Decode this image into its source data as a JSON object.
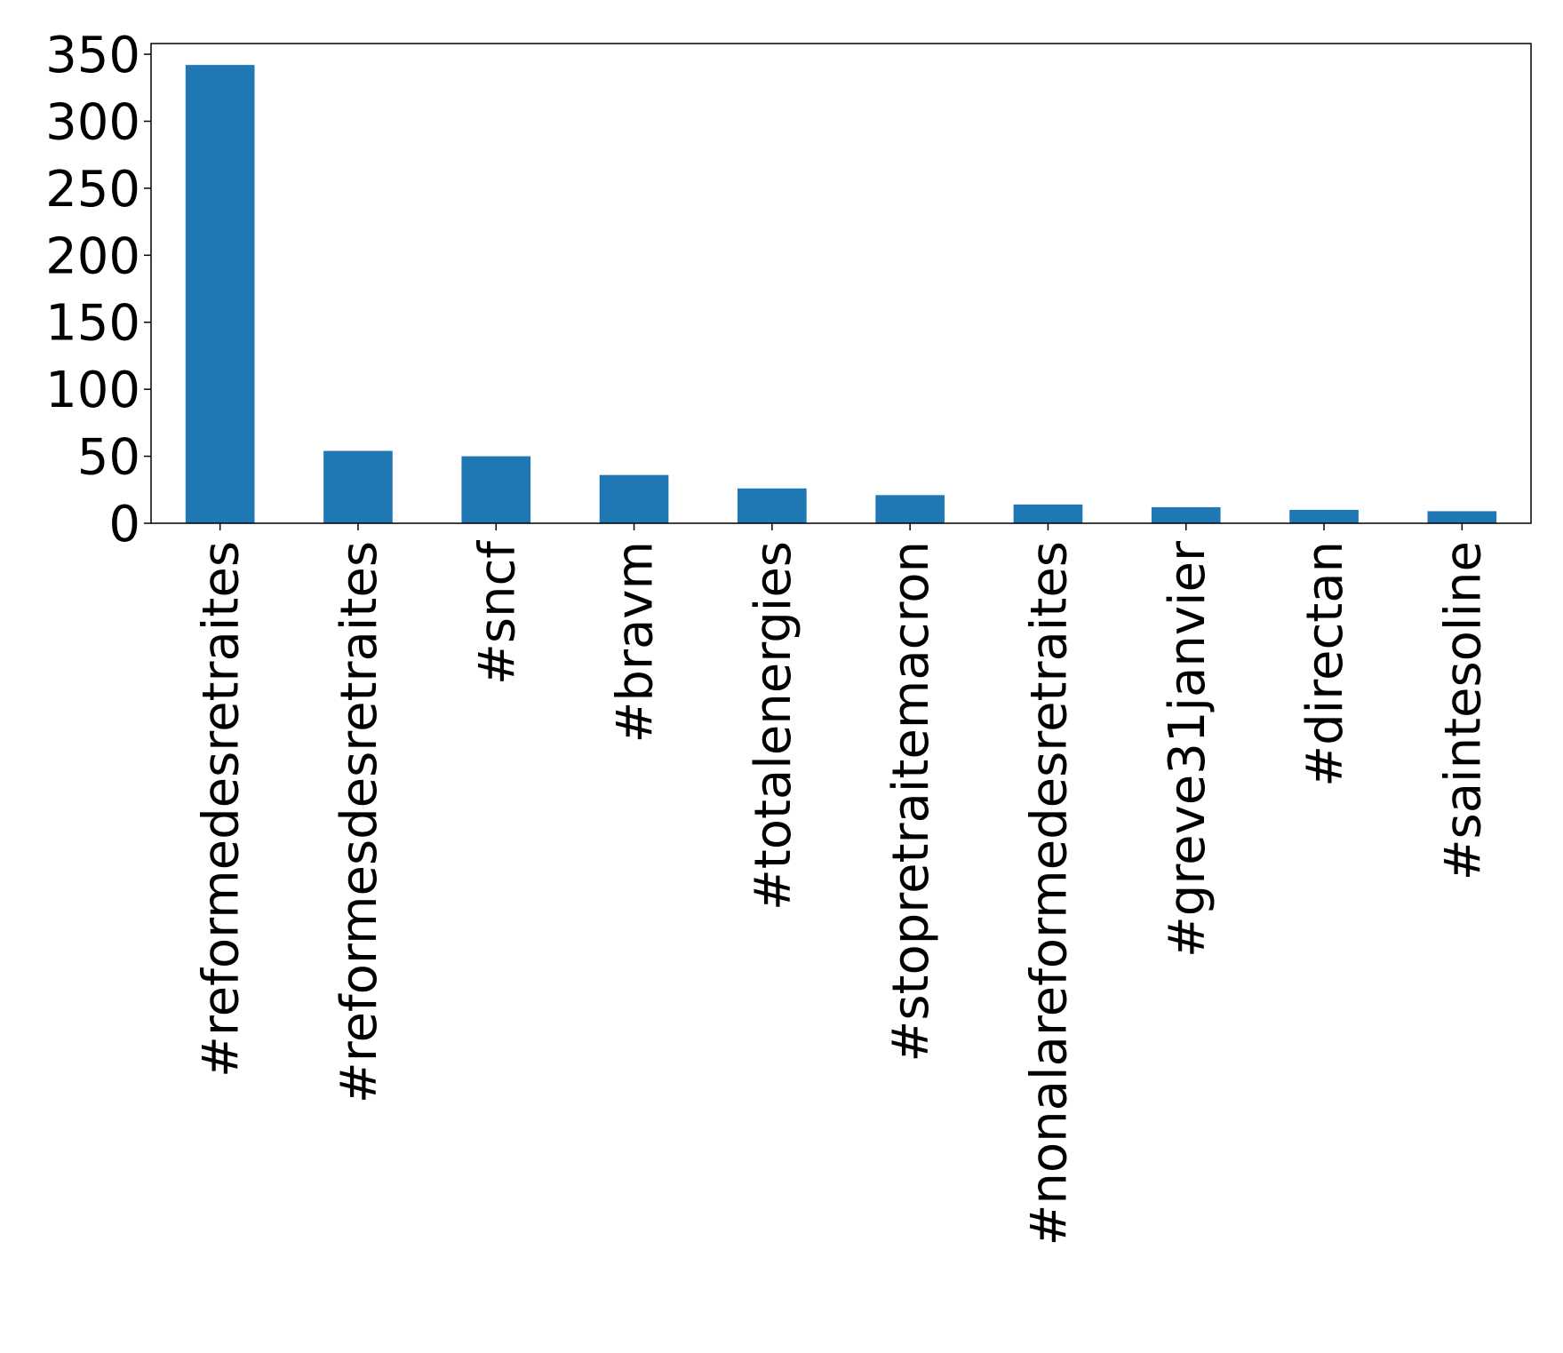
{
  "chart_data": {
    "type": "bar",
    "title": "",
    "xlabel": "",
    "ylabel": "",
    "categories": [
      "#reformedesretraites",
      "#reformesdesretraites",
      "#sncf",
      "#bravm",
      "#totalenergies",
      "#stopretraitemacron",
      "#nonalareformedesretraites",
      "#greve31janvier",
      "#directan",
      "#saintesoline"
    ],
    "values": [
      342,
      54,
      50,
      36,
      26,
      21,
      14,
      12,
      10,
      9
    ],
    "ylim": [
      0,
      358
    ],
    "yticks": [
      0,
      50,
      100,
      150,
      200,
      250,
      300,
      350
    ],
    "grid": false,
    "legend": "none",
    "colors": {
      "bar": "#1f77b4",
      "axes": "#000000",
      "background": "#ffffff"
    }
  }
}
